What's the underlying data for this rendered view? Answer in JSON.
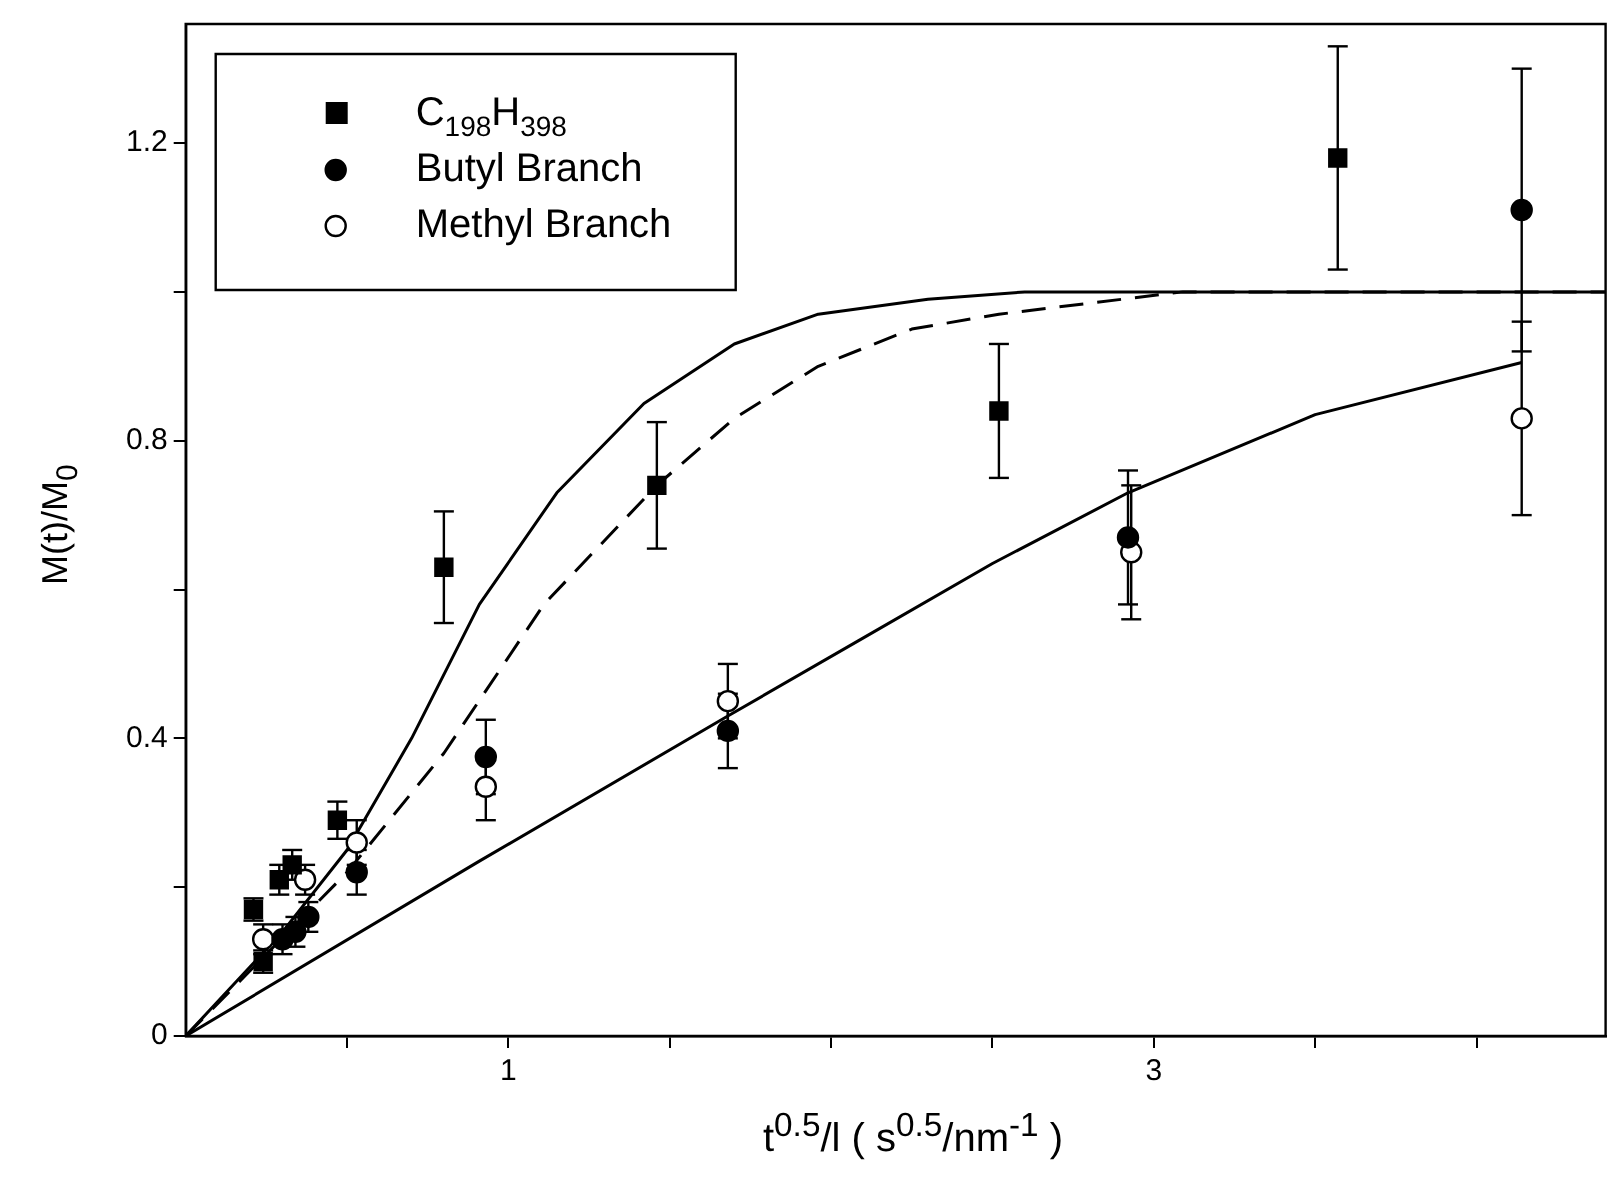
{
  "chart_data": {
    "type": "scatter",
    "xlabel": "t$^{0.5}$/l ( s$^{0.5}$/nm$^{-1}$ )",
    "ylabel": "M(t)/M$_{0}$",
    "xlim": [
      0,
      4.4
    ],
    "ylim": [
      0,
      1.36
    ],
    "xticks": [
      {
        "value": 0.5,
        "label": null
      },
      1,
      {
        "value": 1.5,
        "label": null
      },
      {
        "value": 2,
        "label": null
      },
      {
        "value": 2.5,
        "label": null
      },
      3,
      {
        "value": 3.5,
        "label": null
      },
      {
        "value": 4,
        "label": null
      }
    ],
    "yticks": [
      0,
      {
        "value": 0.2,
        "label": null
      },
      0.4,
      {
        "value": 0.6,
        "label": null
      },
      0.8,
      {
        "value": 1.0,
        "label": null
      },
      1.2
    ],
    "grid": false,
    "legend": "top left",
    "series": [
      {
        "name": "C$_{198}$H$_{398}$",
        "marker": "square",
        "color": "#000000",
        "x": [
          0.21,
          0.24,
          0.29,
          0.33,
          0.47,
          0.8,
          1.46,
          2.52,
          3.57
        ],
        "values": [
          0.17,
          0.1,
          0.21,
          0.23,
          0.29,
          0.63,
          0.74,
          0.84,
          1.18
        ],
        "errors": [
          0.015,
          0.015,
          0.02,
          0.02,
          0.025,
          0.075,
          0.085,
          0.09,
          0.15
        ]
      },
      {
        "name": "Butyl Branch",
        "marker": "circle",
        "color": "#000000",
        "x": [
          0.3,
          0.34,
          0.38,
          0.53,
          0.93,
          1.68,
          2.92,
          4.14
        ],
        "values": [
          0.13,
          0.14,
          0.16,
          0.22,
          0.375,
          0.41,
          0.67,
          1.11
        ],
        "errors": [
          0.02,
          0.02,
          0.02,
          0.03,
          0.05,
          0.05,
          0.09,
          0.19
        ]
      },
      {
        "name": "Methyl Branch",
        "marker": "circle",
        "color": "#ffffff",
        "x": [
          0.24,
          0.37,
          0.53,
          0.93,
          1.68,
          2.93,
          4.14
        ],
        "values": [
          0.13,
          0.21,
          0.26,
          0.335,
          0.45,
          0.65,
          0.83
        ],
        "errors": [
          0.02,
          0.02,
          0.03,
          0.045,
          0.05,
          0.09,
          0.13
        ]
      },
      {
        "type": "line",
        "marker": "none",
        "line_style": "solid",
        "color": "#000000",
        "x": [
          0,
          0.3,
          0.5,
          0.7,
          0.91,
          1.15,
          1.42,
          1.7,
          1.96,
          2.3,
          2.6,
          4.4
        ],
        "values": [
          0,
          0.14,
          0.25,
          0.4,
          0.58,
          0.73,
          0.85,
          0.93,
          0.97,
          0.99,
          1.0,
          1.0
        ]
      },
      {
        "type": "line",
        "marker": "none",
        "line_style": "dashed",
        "color": "#000000",
        "x": [
          0,
          0.5,
          0.8,
          1.11,
          1.46,
          1.7,
          1.96,
          2.25,
          2.52,
          3.09,
          4.4
        ],
        "values": [
          0,
          0.22,
          0.38,
          0.58,
          0.74,
          0.83,
          0.9,
          0.95,
          0.97,
          1.0,
          1.0
        ]
      },
      {
        "type": "line",
        "marker": "none",
        "line_style": "solid",
        "color": "#000000",
        "x": [
          0,
          0.91,
          1.68,
          2.1,
          2.5,
          2.92,
          3.5,
          4.14
        ],
        "values": [
          0,
          0.235,
          0.43,
          0.535,
          0.635,
          0.73,
          0.835,
          0.905
        ]
      }
    ]
  }
}
